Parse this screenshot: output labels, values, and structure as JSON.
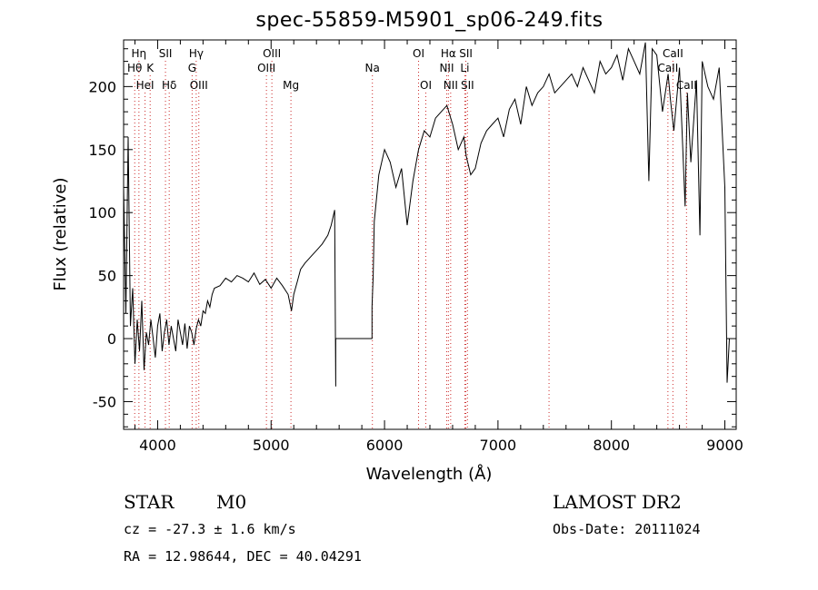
{
  "chart_data": {
    "type": "line",
    "title": "spec-55859-M5901_sp06-249.fits",
    "xlabel": "Wavelength (Å)",
    "ylabel": "Flux (relative)",
    "xlim": [
      3700,
      9100
    ],
    "ylim": [
      -72,
      237
    ],
    "xticks": [
      4000,
      5000,
      6000,
      7000,
      8000,
      9000
    ],
    "yticks": [
      -50,
      0,
      50,
      100,
      150,
      200
    ],
    "grid": false,
    "series": [
      {
        "x": [
          3700,
          3720,
          3740,
          3760,
          3780,
          3800,
          3820,
          3840,
          3860,
          3880,
          3900,
          3920,
          3940,
          3960,
          3980,
          4000,
          4020,
          4040,
          4060,
          4080,
          4100,
          4120,
          4140,
          4160,
          4180,
          4200,
          4220,
          4240,
          4260,
          4280,
          4300,
          4320,
          4340,
          4360,
          4380,
          4400,
          4420,
          4440,
          4460,
          4480,
          4500,
          4550,
          4600,
          4650,
          4700,
          4750,
          4800,
          4850,
          4900,
          4950,
          5000,
          5050,
          5100,
          5150,
          5180,
          5200,
          5230,
          5260,
          5300,
          5350,
          5400,
          5450,
          5500,
          5530,
          5560,
          5570,
          5570,
          5700,
          5800,
          5890,
          5890,
          5900,
          5910,
          5950,
          6000,
          6050,
          6100,
          6150,
          6200,
          6250,
          6280,
          6300,
          6350,
          6400,
          6450,
          6500,
          6550,
          6600,
          6650,
          6700,
          6720,
          6760,
          6800,
          6850,
          6900,
          6950,
          7000,
          7050,
          7100,
          7150,
          7200,
          7250,
          7300,
          7350,
          7400,
          7450,
          7500,
          7550,
          7600,
          7650,
          7700,
          7750,
          7800,
          7850,
          7900,
          7950,
          8000,
          8050,
          8100,
          8150,
          8200,
          8250,
          8300,
          8330,
          8360,
          8400,
          8450,
          8500,
          8520,
          8550,
          8600,
          8650,
          8670,
          8700,
          8750,
          8780,
          8800,
          8850,
          8900,
          8950,
          9000,
          9020,
          9040
        ],
        "values": [
          120,
          20,
          160,
          10,
          40,
          -20,
          15,
          -10,
          30,
          -25,
          5,
          -5,
          15,
          0,
          -15,
          10,
          20,
          -10,
          5,
          15,
          -5,
          10,
          0,
          -10,
          15,
          5,
          -5,
          12,
          -8,
          10,
          5,
          -5,
          8,
          15,
          10,
          22,
          20,
          30,
          25,
          35,
          40,
          42,
          48,
          45,
          50,
          48,
          45,
          52,
          43,
          47,
          40,
          48,
          42,
          35,
          22,
          35,
          45,
          55,
          60,
          65,
          70,
          75,
          82,
          90,
          102,
          -38,
          0,
          0,
          0,
          0,
          25,
          50,
          93,
          130,
          150,
          140,
          120,
          135,
          90,
          125,
          140,
          150,
          165,
          160,
          175,
          180,
          185,
          170,
          150,
          160,
          145,
          130,
          135,
          155,
          165,
          170,
          175,
          160,
          182,
          190,
          170,
          200,
          185,
          195,
          200,
          210,
          195,
          200,
          205,
          210,
          200,
          215,
          205,
          195,
          220,
          210,
          215,
          225,
          205,
          230,
          220,
          210,
          235,
          125,
          230,
          225,
          180,
          210,
          190,
          165,
          215,
          105,
          195,
          140,
          205,
          82,
          220,
          200,
          190,
          215,
          120,
          -35,
          0
        ]
      }
    ],
    "lines": [
      {
        "label": "Hη",
        "x": 3835,
        "row": 1
      },
      {
        "label": "Hθ",
        "x": 3798,
        "row": 2
      },
      {
        "label": "K",
        "x": 3934,
        "row": 2
      },
      {
        "label": "HeI",
        "x": 3889,
        "row": 3
      },
      {
        "label": "SII",
        "x": 4069,
        "row": 1
      },
      {
        "label": "Hδ",
        "x": 4102,
        "row": 3
      },
      {
        "label": "Hγ",
        "x": 4340,
        "row": 1
      },
      {
        "label": "G",
        "x": 4304,
        "row": 2
      },
      {
        "label": "OIII",
        "x": 4363,
        "row": 3
      },
      {
        "label": "OIII",
        "x": 5007,
        "row": 1
      },
      {
        "label": "OIII",
        "x": 4959,
        "row": 2
      },
      {
        "label": "Mg",
        "x": 5175,
        "row": 3
      },
      {
        "label": "Na",
        "x": 5893,
        "row": 2
      },
      {
        "label": "OI",
        "x": 6300,
        "row": 1
      },
      {
        "label": "OI",
        "x": 6364,
        "row": 3
      },
      {
        "label": "Hα",
        "x": 6563,
        "row": 1
      },
      {
        "label": "NII",
        "x": 6548,
        "row": 2
      },
      {
        "label": "NII",
        "x": 6583,
        "row": 3
      },
      {
        "label": "SII",
        "x": 6717,
        "row": 1
      },
      {
        "label": "Li",
        "x": 6708,
        "row": 2
      },
      {
        "label": "SII",
        "x": 6731,
        "row": 3
      },
      {
        "label": "",
        "x": 7450,
        "row": 3
      },
      {
        "label": "CaII",
        "x": 8542,
        "row": 1
      },
      {
        "label": "CaII",
        "x": 8498,
        "row": 2
      },
      {
        "label": "CaII",
        "x": 8662,
        "row": 3
      }
    ]
  },
  "info": {
    "object_type": "STAR",
    "subclass": "M0",
    "survey": "LAMOST DR2",
    "cz": "cz = -27.3 ± 1.6 km/s",
    "obs_date": "Obs-Date: 20111024",
    "coords": "RA =  12.98644, DEC =  40.04291"
  }
}
